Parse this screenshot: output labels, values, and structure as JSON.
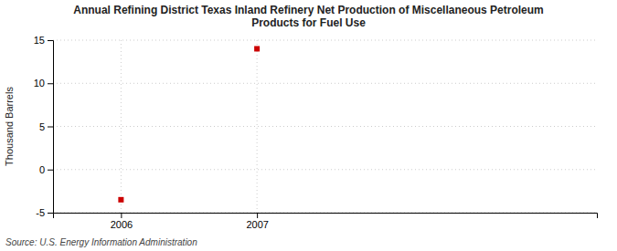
{
  "chart_data": {
    "type": "scatter",
    "title": "Annual Refining District Texas Inland Refinery Net Production of Miscellaneous Petroleum\nProducts for Fuel Use",
    "ylabel": "Thousand Barrels",
    "source": "Source: U.S. Energy Information Administration",
    "x": [
      2006,
      2007
    ],
    "values": [
      -3.5,
      14.0
    ],
    "xlim": [
      2005.5,
      2009.5
    ],
    "xticks": [
      2006,
      2007
    ],
    "ylim": [
      -5,
      15
    ],
    "yticks": [
      -5,
      0,
      5,
      10,
      15
    ],
    "color": "#cc0000",
    "marker": "square",
    "grid": true
  }
}
